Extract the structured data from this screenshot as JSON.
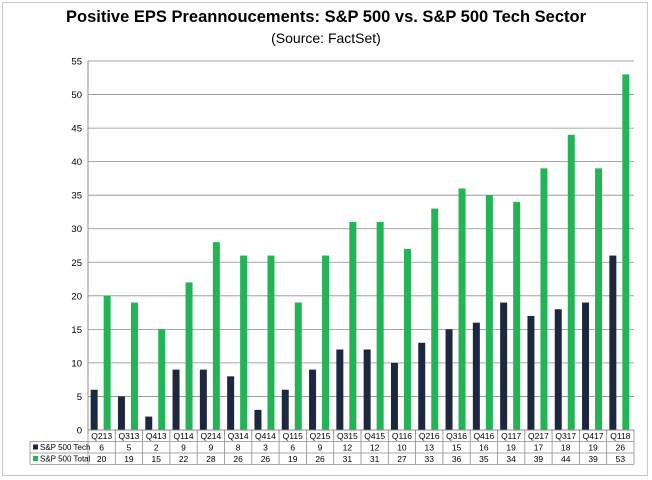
{
  "chart_data": {
    "type": "bar",
    "title": "Positive EPS Preannoucements: S&P 500 vs. S&P 500 Tech Sector",
    "subtitle": "(Source: FactSet)",
    "categories": [
      "Q213",
      "Q313",
      "Q413",
      "Q114",
      "Q214",
      "Q314",
      "Q414",
      "Q115",
      "Q215",
      "Q315",
      "Q415",
      "Q116",
      "Q216",
      "Q316",
      "Q416",
      "Q117",
      "Q217",
      "Q317",
      "Q417",
      "Q118"
    ],
    "series": [
      {
        "name": "S&P 500 Tech",
        "color": "#1c2841",
        "values": [
          6,
          5,
          2,
          9,
          9,
          8,
          3,
          6,
          9,
          12,
          12,
          10,
          13,
          15,
          16,
          19,
          17,
          18,
          19,
          26
        ]
      },
      {
        "name": "S&P 500 Total",
        "color": "#22b455",
        "values": [
          20,
          19,
          15,
          22,
          28,
          26,
          26,
          19,
          26,
          31,
          31,
          27,
          33,
          36,
          35,
          34,
          39,
          44,
          39,
          53
        ]
      }
    ],
    "ylim": [
      0,
      55
    ],
    "yticks": [
      0,
      5,
      10,
      15,
      20,
      25,
      30,
      35,
      40,
      45,
      50,
      55
    ],
    "grid": true,
    "legend": "data-table"
  }
}
